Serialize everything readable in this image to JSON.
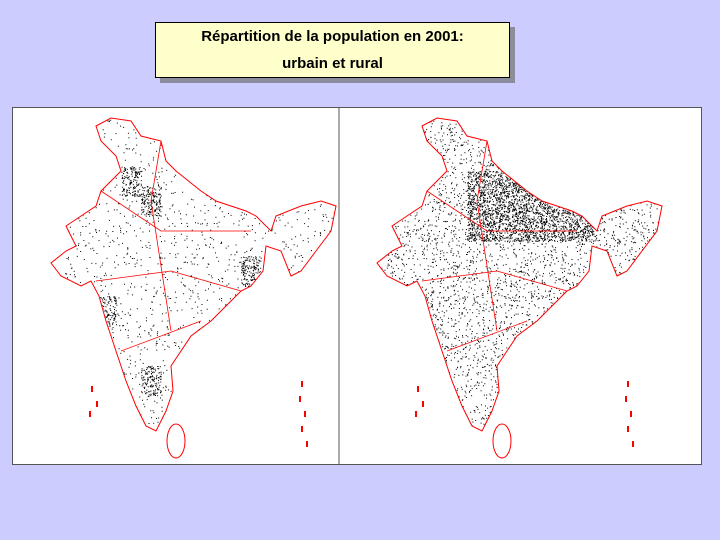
{
  "slide": {
    "title_line1": "Répartition de la population en 2001:",
    "title_line2": "urbain et rural"
  },
  "maps": [
    {
      "name": "urbain",
      "dot_density": 0.35
    },
    {
      "name": "rural",
      "dot_density": 1.0
    }
  ],
  "colors": {
    "background": "#ccccff",
    "title_box": "#ffffcc",
    "borders": "#ff0000",
    "dots": "#000000"
  }
}
